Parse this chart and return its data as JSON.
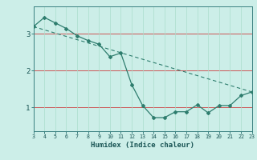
{
  "xlabel": "Humidex (Indice chaleur)",
  "background_color": "#cceee8",
  "line_color": "#2e7d6e",
  "grid_color": "#aaddcc",
  "red_line_color": "#cc5555",
  "x_data": [
    3,
    4,
    5,
    6,
    7,
    8,
    9,
    10,
    11,
    12,
    13,
    14,
    15,
    16,
    17,
    18,
    19,
    20,
    21,
    22,
    23
  ],
  "y_data": [
    3.2,
    3.45,
    3.3,
    3.15,
    2.95,
    2.82,
    2.72,
    2.38,
    2.48,
    1.62,
    1.05,
    0.72,
    0.72,
    0.88,
    0.88,
    1.07,
    0.85,
    1.05,
    1.05,
    1.32,
    1.42
  ],
  "trend_x": [
    3,
    23
  ],
  "trend_y": [
    3.2,
    1.42
  ],
  "xlim": [
    3,
    23
  ],
  "ylim": [
    0.35,
    3.75
  ],
  "yticks": [
    1,
    2,
    3
  ],
  "xticks": [
    3,
    4,
    5,
    6,
    7,
    8,
    9,
    10,
    11,
    12,
    13,
    14,
    15,
    16,
    17,
    18,
    19,
    20,
    21,
    22,
    23
  ],
  "red_hlines": [
    1,
    2,
    3
  ],
  "tick_color": "#1a5555",
  "spine_color": "#3a8080"
}
